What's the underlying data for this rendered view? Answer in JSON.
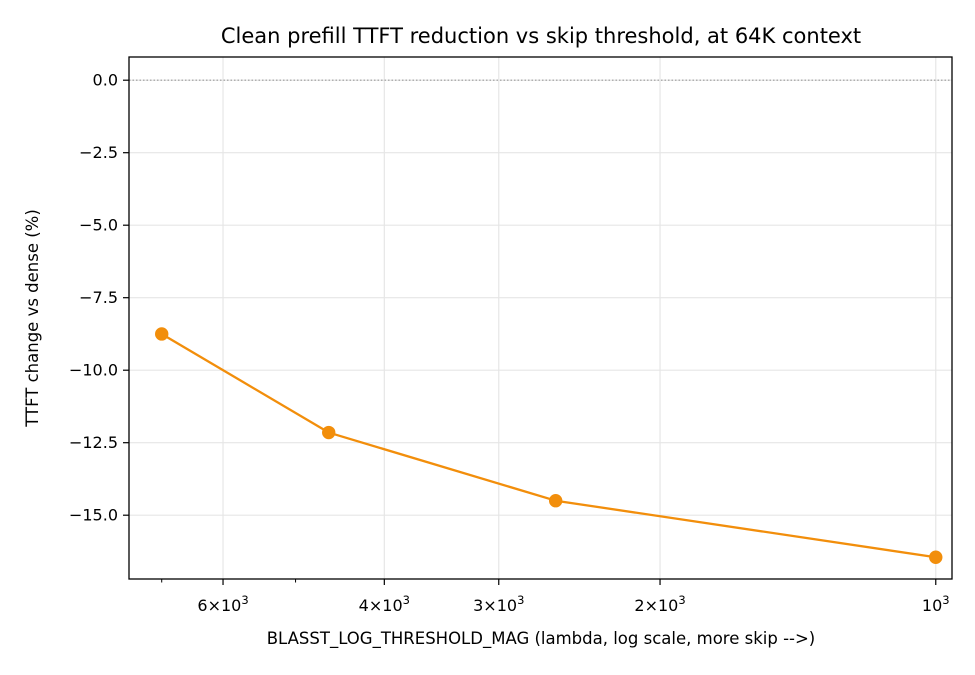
{
  "chart_data": {
    "type": "line",
    "title": "Clean prefill TTFT reduction vs skip threshold, at 64K context",
    "xlabel": "BLASST_LOG_THRESHOLD_MAG (lambda, log scale, more skip -->)",
    "ylabel": "TTFT change vs dense (%)",
    "x_scale": "log",
    "x_inverted": true,
    "xlim": [
      7600,
      960
    ],
    "ylim": [
      -17.2,
      0.8
    ],
    "grid": true,
    "reference_line": {
      "y": 0,
      "style": "dotted",
      "color": "#999999"
    },
    "x_major_ticks": [
      {
        "value": 6000,
        "base": "6×10",
        "exp": "3"
      },
      {
        "value": 4000,
        "base": "4×10",
        "exp": "3"
      },
      {
        "value": 3000,
        "base": "3×10",
        "exp": "3"
      },
      {
        "value": 2000,
        "base": "2×10",
        "exp": "3"
      },
      {
        "value": 1000,
        "base": "10",
        "exp": "3"
      }
    ],
    "x_minor_ticks": [
      7000,
      5000
    ],
    "y_ticks": [
      {
        "value": 0.0,
        "label": "0.0"
      },
      {
        "value": -2.5,
        "label": "−2.5"
      },
      {
        "value": -5.0,
        "label": "−5.0"
      },
      {
        "value": -7.5,
        "label": "−7.5"
      },
      {
        "value": -10.0,
        "label": "−10.0"
      },
      {
        "value": -12.5,
        "label": "−12.5"
      },
      {
        "value": -15.0,
        "label": "−15.0"
      }
    ],
    "series": [
      {
        "color": "#f28e0b",
        "x": [
          7000,
          4600,
          2600,
          1000
        ],
        "y": [
          -8.75,
          -12.15,
          -14.5,
          -16.45
        ]
      }
    ]
  }
}
